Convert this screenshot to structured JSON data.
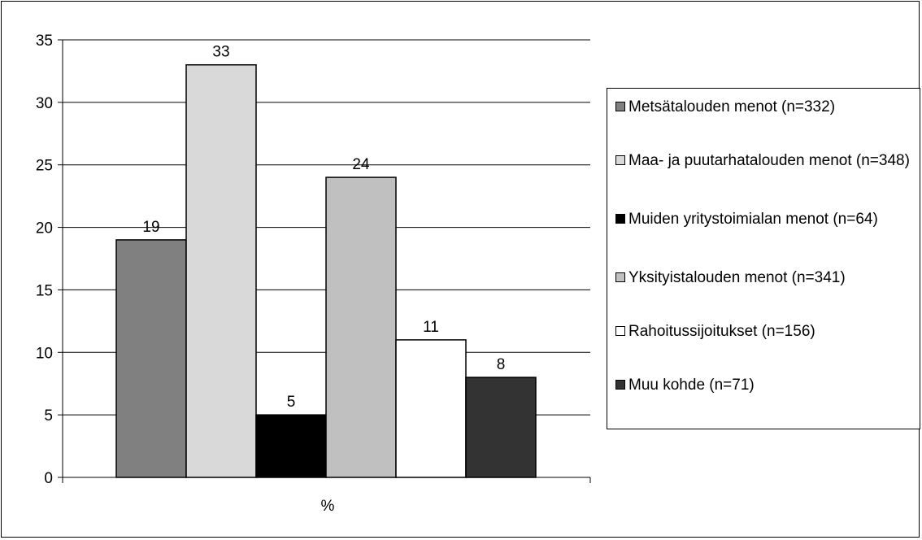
{
  "chart_data": {
    "type": "bar",
    "xlabel": "%",
    "ylabel": "",
    "ylim": [
      0,
      35
    ],
    "yticks": [
      0,
      5,
      10,
      15,
      20,
      25,
      30,
      35
    ],
    "grid": true,
    "legend_position": "right",
    "series": [
      {
        "name": "Metsätalouden menot (n=332)",
        "value": 19,
        "color": "#808080"
      },
      {
        "name": "Maa- ja puutarhatalouden menot (n=348)",
        "value": 33,
        "color": "#d9d9d9"
      },
      {
        "name": "Muiden yritystoimialan menot (n=64)",
        "value": 5,
        "color": "#000000"
      },
      {
        "name": "Yksityistalouden menot (n=341)",
        "value": 24,
        "color": "#c0c0c0"
      },
      {
        "name": "Rahoitussijoitukset (n=156)",
        "value": 11,
        "color": "#ffffff"
      },
      {
        "name": "Muu kohde (n=71)",
        "value": 8,
        "color": "#333333"
      }
    ]
  }
}
